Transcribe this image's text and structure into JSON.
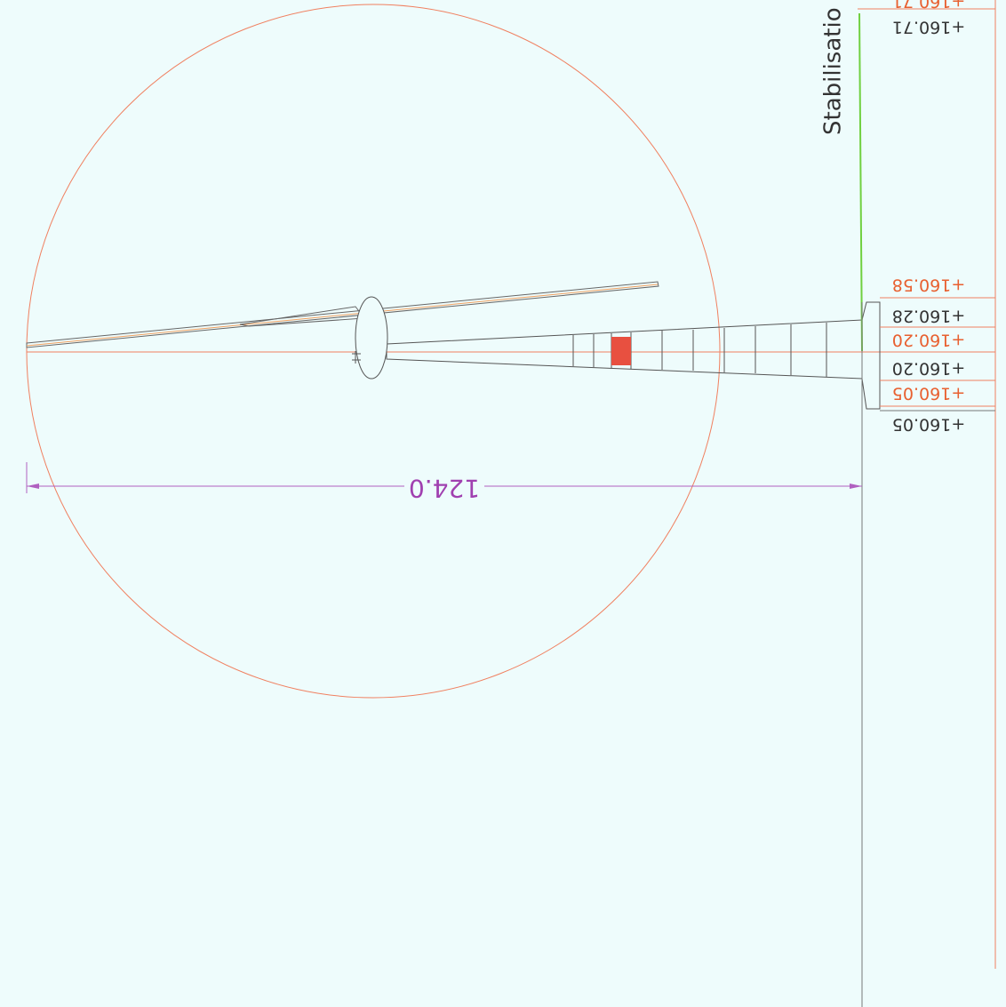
{
  "section_label": "Stabilisatio",
  "dimension": "124.0",
  "levels": [
    {
      "label": "+160.71",
      "kind": "design"
    },
    {
      "label": "+160.71",
      "kind": "existing"
    },
    {
      "label": "+160.58",
      "kind": "design"
    },
    {
      "label": "+160.28",
      "kind": "existing"
    },
    {
      "label": "+160.20",
      "kind": "design"
    },
    {
      "label": "+160.20",
      "kind": "existing"
    },
    {
      "label": "+160.05",
      "kind": "design"
    },
    {
      "label": "+160.05",
      "kind": "existing"
    }
  ]
}
